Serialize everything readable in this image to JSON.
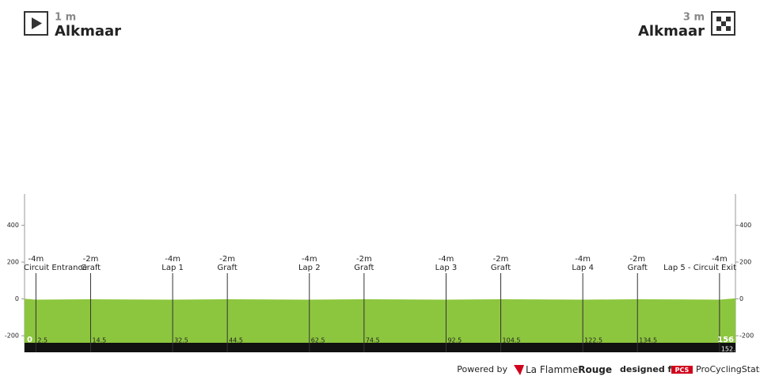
{
  "chart_data": {
    "type": "area",
    "color": "#8cc63e",
    "xlim": [
      0,
      156
    ],
    "ylim": [
      -290,
      570
    ],
    "yticks": [
      -200,
      0,
      200,
      400
    ],
    "x": [
      0,
      2.5,
      14.5,
      32.5,
      44.5,
      62.5,
      74.5,
      92.5,
      104.5,
      122.5,
      134.5,
      {
        "value": 152.5,
        "label": "152."
      },
      156
    ],
    "values": [
      1,
      -4,
      -2,
      -4,
      -2,
      -4,
      -2,
      -4,
      -2,
      -4,
      -2,
      -4,
      3
    ],
    "value_labels": [
      "1 m",
      "-4m",
      "-2m",
      "-4m",
      "-2m",
      "-4m",
      "-2m",
      "-4m",
      "-2m",
      "-4m",
      "-2m",
      "-4m",
      "3 m"
    ],
    "names": [
      "Alkmaar",
      "Circuit Entrance",
      "Graft",
      "Lap 1",
      "Graft",
      "Lap 2",
      "Graft",
      "Lap 3",
      "Graft",
      "Lap 4",
      "Graft",
      "Lap 5 - Circuit Exit",
      "Alkmaar"
    ]
  },
  "footer": {
    "powered_by": "Powered by",
    "brand_a": "La Flamme",
    "brand_b": "Rouge",
    "designed_for": "designed for",
    "pcs": "PCS",
    "site": "ProCyclingStats"
  }
}
